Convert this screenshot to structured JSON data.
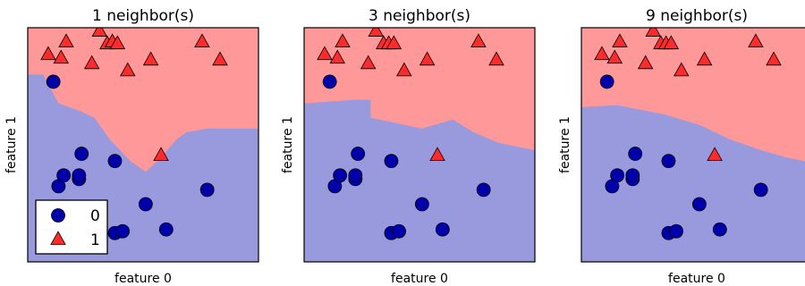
{
  "chart_data": [
    {
      "type": "scatter",
      "title": "1 neighbor(s)",
      "xlabel": "feature 0",
      "ylabel": "feature 1",
      "n_neighbors": 1,
      "xlim": [
        8,
        12.5
      ],
      "ylim": [
        -1,
        5.5
      ],
      "grid": false,
      "region_colors": {
        "class_0": "#9999dd",
        "class_1": "#ff9999"
      },
      "legend": {
        "position": "lower-left",
        "entries": [
          "0",
          "1"
        ]
      },
      "boundary": [
        [
          8,
          4.2
        ],
        [
          8.3,
          4.2
        ],
        [
          8.6,
          3.4
        ],
        [
          9.0,
          3.2
        ],
        [
          9.3,
          3.0
        ],
        [
          9.6,
          2.4
        ],
        [
          10.0,
          1.8
        ],
        [
          10.3,
          1.5
        ],
        [
          10.6,
          1.9
        ],
        [
          10.9,
          2.4
        ],
        [
          11.1,
          2.6
        ],
        [
          11.5,
          2.7
        ],
        [
          12.5,
          2.7
        ]
      ],
      "series": [
        {
          "name": "0",
          "color": "#0000aa",
          "marker": "circle",
          "points": [
            [
              8.5,
              4.0
            ],
            [
              9.05,
              2.0
            ],
            [
              8.6,
              1.1
            ],
            [
              8.7,
              1.4
            ],
            [
              9.0,
              1.3
            ],
            [
              9.0,
              1.4
            ],
            [
              9.7,
              1.8
            ],
            [
              10.3,
              0.6
            ],
            [
              11.5,
              1.0
            ],
            [
              9.7,
              -0.2
            ],
            [
              9.85,
              -0.15
            ],
            [
              10.7,
              -0.1
            ]
          ]
        },
        {
          "name": "1",
          "color": "#ff2a2a",
          "marker": "triangle",
          "points": [
            [
              8.4,
              4.75
            ],
            [
              8.65,
              4.65
            ],
            [
              8.75,
              5.1
            ],
            [
              9.25,
              4.5
            ],
            [
              9.95,
              4.3
            ],
            [
              10.4,
              4.6
            ],
            [
              9.4,
              5.4
            ],
            [
              9.55,
              5.05
            ],
            [
              9.65,
              5.1
            ],
            [
              9.75,
              5.05
            ],
            [
              11.4,
              5.1
            ],
            [
              11.75,
              4.6
            ],
            [
              10.6,
              1.95
            ]
          ]
        }
      ]
    },
    {
      "type": "scatter",
      "title": "3 neighbor(s)",
      "xlabel": "feature 0",
      "ylabel": "feature 1",
      "n_neighbors": 3,
      "xlim": [
        8,
        12.5
      ],
      "ylim": [
        -1,
        5.5
      ],
      "grid": false,
      "region_colors": {
        "class_0": "#9999dd",
        "class_1": "#ff9999"
      },
      "boundary": [
        [
          8,
          3.4
        ],
        [
          8.5,
          3.45
        ],
        [
          9.0,
          3.5
        ],
        [
          9.3,
          3.5
        ],
        [
          9.3,
          3.0
        ],
        [
          9.8,
          2.85
        ],
        [
          10.3,
          2.7
        ],
        [
          10.9,
          2.95
        ],
        [
          11.3,
          2.6
        ],
        [
          11.8,
          2.3
        ],
        [
          12.5,
          2.1
        ]
      ],
      "series": [
        {
          "name": "0",
          "color": "#0000aa",
          "marker": "circle",
          "points": [
            [
              8.5,
              4.0
            ],
            [
              9.05,
              2.0
            ],
            [
              8.6,
              1.1
            ],
            [
              8.7,
              1.4
            ],
            [
              9.0,
              1.3
            ],
            [
              9.0,
              1.4
            ],
            [
              9.7,
              1.8
            ],
            [
              10.3,
              0.6
            ],
            [
              11.5,
              1.0
            ],
            [
              9.7,
              -0.2
            ],
            [
              9.85,
              -0.15
            ],
            [
              10.7,
              -0.1
            ]
          ]
        },
        {
          "name": "1",
          "color": "#ff2a2a",
          "marker": "triangle",
          "points": [
            [
              8.4,
              4.75
            ],
            [
              8.65,
              4.65
            ],
            [
              8.75,
              5.1
            ],
            [
              9.25,
              4.5
            ],
            [
              9.95,
              4.3
            ],
            [
              10.4,
              4.6
            ],
            [
              9.4,
              5.4
            ],
            [
              9.55,
              5.05
            ],
            [
              9.65,
              5.05
            ],
            [
              9.75,
              5.05
            ],
            [
              11.4,
              5.1
            ],
            [
              11.75,
              4.6
            ],
            [
              10.6,
              1.95
            ]
          ]
        }
      ]
    },
    {
      "type": "scatter",
      "title": "9 neighbor(s)",
      "xlabel": "feature 0",
      "ylabel": "feature 1",
      "n_neighbors": 9,
      "xlim": [
        8,
        12.5
      ],
      "ylim": [
        -1,
        5.5
      ],
      "grid": false,
      "region_colors": {
        "class_0": "#9999dd",
        "class_1": "#ff9999"
      },
      "boundary": [
        [
          8,
          3.3
        ],
        [
          8.7,
          3.35
        ],
        [
          9.6,
          3.1
        ],
        [
          10.3,
          2.8
        ],
        [
          10.9,
          2.4
        ],
        [
          11.5,
          2.1
        ],
        [
          12.0,
          1.9
        ],
        [
          12.5,
          1.75
        ]
      ],
      "series": [
        {
          "name": "0",
          "color": "#0000aa",
          "marker": "circle",
          "points": [
            [
              8.5,
              4.0
            ],
            [
              9.05,
              2.0
            ],
            [
              8.6,
              1.1
            ],
            [
              8.7,
              1.4
            ],
            [
              9.0,
              1.3
            ],
            [
              9.0,
              1.4
            ],
            [
              9.7,
              1.8
            ],
            [
              10.3,
              0.6
            ],
            [
              11.5,
              1.0
            ],
            [
              9.7,
              -0.2
            ],
            [
              9.85,
              -0.15
            ],
            [
              10.7,
              -0.1
            ]
          ]
        },
        {
          "name": "1",
          "color": "#ff2a2a",
          "marker": "triangle",
          "points": [
            [
              8.4,
              4.75
            ],
            [
              8.65,
              4.65
            ],
            [
              8.75,
              5.1
            ],
            [
              9.25,
              4.5
            ],
            [
              9.95,
              4.3
            ],
            [
              10.4,
              4.6
            ],
            [
              9.4,
              5.4
            ],
            [
              9.55,
              5.05
            ],
            [
              9.65,
              5.05
            ],
            [
              9.75,
              5.05
            ],
            [
              11.4,
              5.1
            ],
            [
              11.75,
              4.6
            ],
            [
              10.6,
              1.95
            ]
          ]
        }
      ]
    }
  ]
}
